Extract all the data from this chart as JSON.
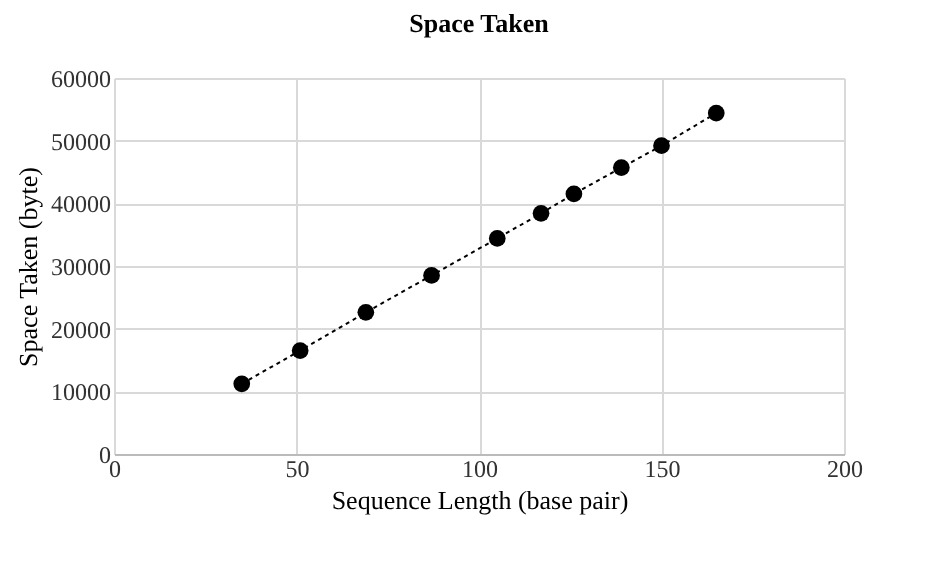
{
  "chart_data": {
    "type": "line",
    "title": "Space Taken",
    "xlabel": "Sequence Length (base pair)",
    "ylabel": "Space Taken (byte)",
    "x": [
      35,
      51,
      69,
      87,
      105,
      117,
      126,
      139,
      150,
      165
    ],
    "series": [
      {
        "color": "#000000",
        "values": [
          11200,
          16500,
          22600,
          28500,
          34400,
          38400,
          41500,
          45700,
          49200,
          54400
        ]
      }
    ],
    "xlim": [
      0,
      200
    ],
    "xticks": [
      0,
      50,
      100,
      150,
      200
    ],
    "ylim": [
      0,
      60000
    ],
    "yticks": [
      0,
      10000,
      20000,
      30000,
      40000,
      50000,
      60000
    ],
    "grid": true,
    "marker": "circle",
    "line_style": "dotted"
  }
}
